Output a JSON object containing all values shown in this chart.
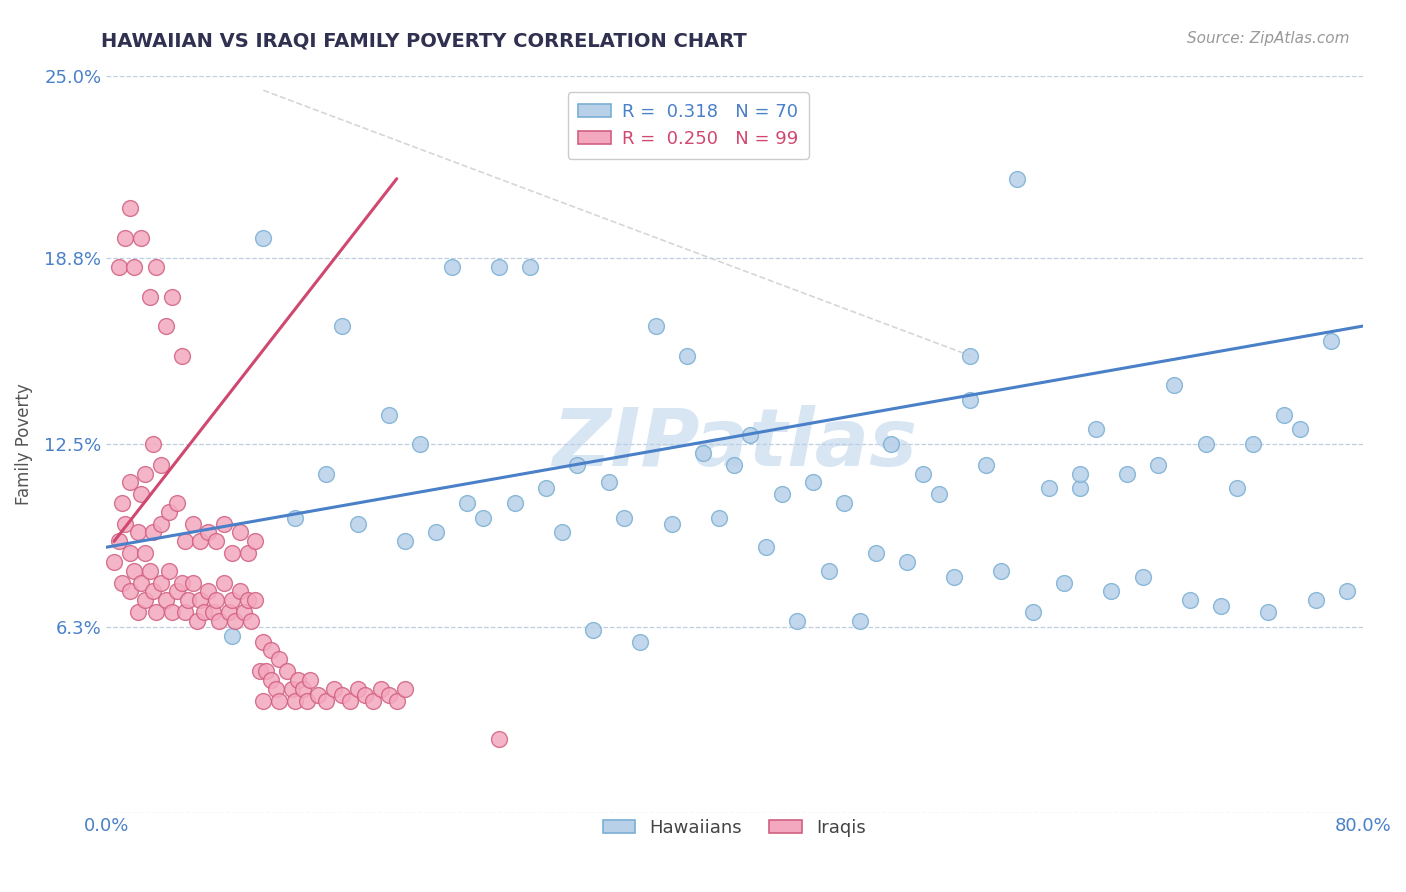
{
  "title": "HAWAIIAN VS IRAQI FAMILY POVERTY CORRELATION CHART",
  "source": "Source: ZipAtlas.com",
  "ylabel": "Family Poverty",
  "xlim": [
    0.0,
    0.8
  ],
  "ylim": [
    0.0,
    0.25
  ],
  "yticks": [
    0.0,
    0.063,
    0.125,
    0.188,
    0.25
  ],
  "ytick_labels": [
    "",
    "6.3%",
    "12.5%",
    "18.8%",
    "25.0%"
  ],
  "xticks": [
    0.0,
    0.8
  ],
  "xtick_labels": [
    "0.0%",
    "80.0%"
  ],
  "hawaiian_R": "0.318",
  "hawaiian_N": "70",
  "iraqi_R": "0.250",
  "iraqi_N": "99",
  "hawaiian_color": "#b8d0e8",
  "hawaiian_edge": "#7aafd4",
  "iraqi_color": "#f4a8c0",
  "iraqi_edge": "#d06080",
  "hawaiian_trend_color": "#4a80c8",
  "iraqi_trend_color": "#d04870",
  "watermark": "ZIPatlas",
  "background_color": "#ffffff",
  "grid_color": "#c0cfe0",
  "title_color": "#303050",
  "source_color": "#999999",
  "axis_color": "#4a80c8",
  "label_color": "#555555",
  "hawaiians_x": [
    0.1,
    0.22,
    0.25,
    0.27,
    0.35,
    0.37,
    0.5,
    0.52,
    0.55,
    0.58,
    0.6,
    0.63,
    0.65,
    0.68,
    0.7,
    0.72,
    0.75,
    0.78,
    0.14,
    0.18,
    0.2,
    0.23,
    0.28,
    0.3,
    0.32,
    0.38,
    0.4,
    0.43,
    0.45,
    0.47,
    0.53,
    0.56,
    0.62,
    0.67,
    0.73,
    0.76,
    0.12,
    0.16,
    0.19,
    0.21,
    0.24,
    0.26,
    0.29,
    0.33,
    0.36,
    0.39,
    0.42,
    0.46,
    0.49,
    0.51,
    0.54,
    0.57,
    0.61,
    0.64,
    0.66,
    0.69,
    0.08,
    0.31,
    0.34,
    0.44,
    0.48,
    0.59,
    0.71,
    0.74,
    0.77,
    0.79,
    0.15,
    0.41,
    0.55,
    0.62
  ],
  "hawaiians_y": [
    0.195,
    0.185,
    0.185,
    0.185,
    0.165,
    0.155,
    0.125,
    0.115,
    0.155,
    0.215,
    0.11,
    0.13,
    0.115,
    0.145,
    0.125,
    0.11,
    0.135,
    0.16,
    0.115,
    0.135,
    0.125,
    0.105,
    0.11,
    0.118,
    0.112,
    0.122,
    0.118,
    0.108,
    0.112,
    0.105,
    0.108,
    0.118,
    0.11,
    0.118,
    0.125,
    0.13,
    0.1,
    0.098,
    0.092,
    0.095,
    0.1,
    0.105,
    0.095,
    0.1,
    0.098,
    0.1,
    0.09,
    0.082,
    0.088,
    0.085,
    0.08,
    0.082,
    0.078,
    0.075,
    0.08,
    0.072,
    0.06,
    0.062,
    0.058,
    0.065,
    0.065,
    0.068,
    0.07,
    0.068,
    0.072,
    0.075,
    0.165,
    0.128,
    0.14,
    0.115
  ],
  "iraqis_x": [
    0.005,
    0.008,
    0.01,
    0.01,
    0.012,
    0.015,
    0.015,
    0.015,
    0.018,
    0.02,
    0.02,
    0.022,
    0.022,
    0.025,
    0.025,
    0.025,
    0.028,
    0.03,
    0.03,
    0.03,
    0.032,
    0.035,
    0.035,
    0.035,
    0.038,
    0.04,
    0.04,
    0.042,
    0.045,
    0.045,
    0.048,
    0.05,
    0.05,
    0.052,
    0.055,
    0.055,
    0.058,
    0.06,
    0.06,
    0.062,
    0.065,
    0.065,
    0.068,
    0.07,
    0.07,
    0.072,
    0.075,
    0.075,
    0.078,
    0.08,
    0.08,
    0.082,
    0.085,
    0.085,
    0.088,
    0.09,
    0.09,
    0.092,
    0.095,
    0.095,
    0.098,
    0.1,
    0.1,
    0.102,
    0.105,
    0.105,
    0.108,
    0.11,
    0.11,
    0.115,
    0.118,
    0.12,
    0.122,
    0.125,
    0.128,
    0.13,
    0.135,
    0.14,
    0.145,
    0.15,
    0.155,
    0.16,
    0.165,
    0.17,
    0.175,
    0.18,
    0.185,
    0.19,
    0.008,
    0.012,
    0.015,
    0.018,
    0.022,
    0.028,
    0.032,
    0.038,
    0.042,
    0.048,
    0.25
  ],
  "iraqis_y": [
    0.085,
    0.092,
    0.078,
    0.105,
    0.098,
    0.088,
    0.075,
    0.112,
    0.082,
    0.095,
    0.068,
    0.078,
    0.108,
    0.072,
    0.088,
    0.115,
    0.082,
    0.075,
    0.095,
    0.125,
    0.068,
    0.078,
    0.098,
    0.118,
    0.072,
    0.082,
    0.102,
    0.068,
    0.075,
    0.105,
    0.078,
    0.068,
    0.092,
    0.072,
    0.078,
    0.098,
    0.065,
    0.072,
    0.092,
    0.068,
    0.075,
    0.095,
    0.068,
    0.072,
    0.092,
    0.065,
    0.078,
    0.098,
    0.068,
    0.072,
    0.088,
    0.065,
    0.075,
    0.095,
    0.068,
    0.072,
    0.088,
    0.065,
    0.072,
    0.092,
    0.048,
    0.058,
    0.038,
    0.048,
    0.045,
    0.055,
    0.042,
    0.052,
    0.038,
    0.048,
    0.042,
    0.038,
    0.045,
    0.042,
    0.038,
    0.045,
    0.04,
    0.038,
    0.042,
    0.04,
    0.038,
    0.042,
    0.04,
    0.038,
    0.042,
    0.04,
    0.038,
    0.042,
    0.185,
    0.195,
    0.205,
    0.185,
    0.195,
    0.175,
    0.185,
    0.165,
    0.175,
    0.155,
    0.025
  ],
  "iraqi_line_x": [
    0.005,
    0.185
  ],
  "iraqi_line_y": [
    0.092,
    0.215
  ],
  "hawaiian_line_x": [
    0.0,
    0.8
  ],
  "hawaiian_line_y": [
    0.09,
    0.165
  ]
}
